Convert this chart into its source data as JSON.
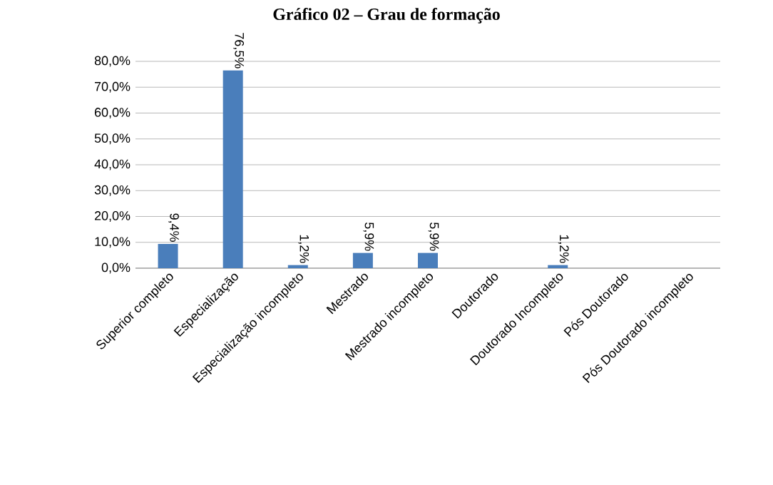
{
  "chart_data": {
    "type": "bar",
    "title": "Gráfico 02 – Grau de formação",
    "categories": [
      "Superior completo",
      "Especialização",
      "Especialização incompleto",
      "Mestrado",
      "Mestrado incompleto",
      "Doutorado",
      "Doutorado Incompleto",
      "Pós Doutorado",
      "Pós Doutorado incompleto"
    ],
    "values": [
      9.4,
      76.5,
      1.2,
      5.9,
      5.9,
      0,
      1.2,
      0,
      0
    ],
    "value_labels": [
      "9,4%",
      "76,5%",
      "1,2%",
      "5,9%",
      "5,9%",
      null,
      "1,2%",
      null,
      null
    ],
    "color": "#4a7ebb",
    "ylim": [
      0,
      80
    ],
    "yticks": [
      {
        "value": 0,
        "label": "0,0%"
      },
      {
        "value": 10,
        "label": "10,0%"
      },
      {
        "value": 20,
        "label": "20,0%"
      },
      {
        "value": 30,
        "label": "30,0%"
      },
      {
        "value": 40,
        "label": "40,0%"
      },
      {
        "value": 50,
        "label": "50,0%"
      },
      {
        "value": 60,
        "label": "60,0%"
      },
      {
        "value": 70,
        "label": "70,0%"
      },
      {
        "value": 80,
        "label": "80,0%"
      }
    ],
    "grid": "y"
  }
}
